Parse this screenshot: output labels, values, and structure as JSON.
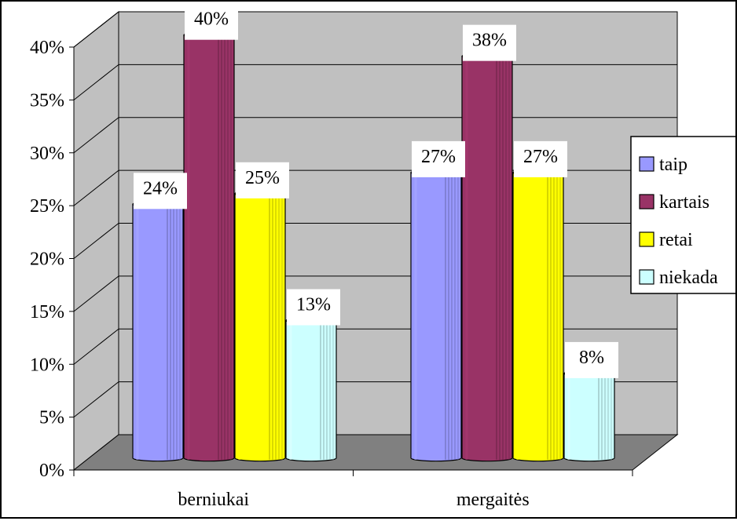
{
  "chart_data": {
    "type": "bar",
    "categories": [
      "berniukai",
      "mergaitės"
    ],
    "series": [
      {
        "name": "taip",
        "color": "#9999ff",
        "values": [
          24,
          27
        ],
        "labels": [
          "24%",
          "27%"
        ]
      },
      {
        "name": "kartais",
        "color": "#993366",
        "values": [
          40,
          38
        ],
        "labels": [
          "40%",
          "38%"
        ]
      },
      {
        "name": "retai",
        "color": "#ffff00",
        "values": [
          25,
          27
        ],
        "labels": [
          "25%",
          "27%"
        ]
      },
      {
        "name": "niekada",
        "color": "#ccffff",
        "values": [
          13,
          8
        ],
        "labels": [
          "13%",
          "8%"
        ]
      }
    ],
    "ylim": [
      0,
      40
    ],
    "yticks": [
      "0%",
      "5%",
      "10%",
      "15%",
      "20%",
      "25%",
      "30%",
      "35%",
      "40%"
    ],
    "grid": true,
    "legend_position": "right",
    "wall_color": "#c0c0c0",
    "floor_color": "#808080"
  }
}
